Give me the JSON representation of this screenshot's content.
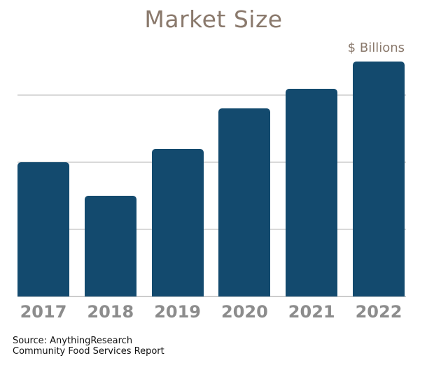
{
  "chart_data": {
    "type": "bar",
    "title": "Market Size",
    "unit_label": "$ Billions",
    "categories": [
      "2017",
      "2018",
      "2019",
      "2020",
      "2021",
      "2022"
    ],
    "values": [
      2.0,
      1.5,
      2.2,
      2.8,
      3.1,
      3.5
    ],
    "value_axis": {
      "tick_labels_visible": false,
      "gridline_values": [
        1,
        2,
        3
      ],
      "ylim": [
        0,
        3.67
      ],
      "note": "y-axis shows no numeric tick labels; values estimated in gridline units"
    },
    "legend": "none",
    "grid": "horizontal",
    "colors": {
      "bar": "#134a6e",
      "title_text": "#8a796c",
      "unit_text": "#8a796c",
      "category_text": "#8c8c8c",
      "gridline": "#d9d9d9",
      "axis_line": "#cccccc",
      "source_text": "#111111",
      "background": "#ffffff"
    }
  },
  "footer": {
    "source_line1": "Source: AnythingResearch",
    "source_line2": "Community Food Services Report"
  }
}
